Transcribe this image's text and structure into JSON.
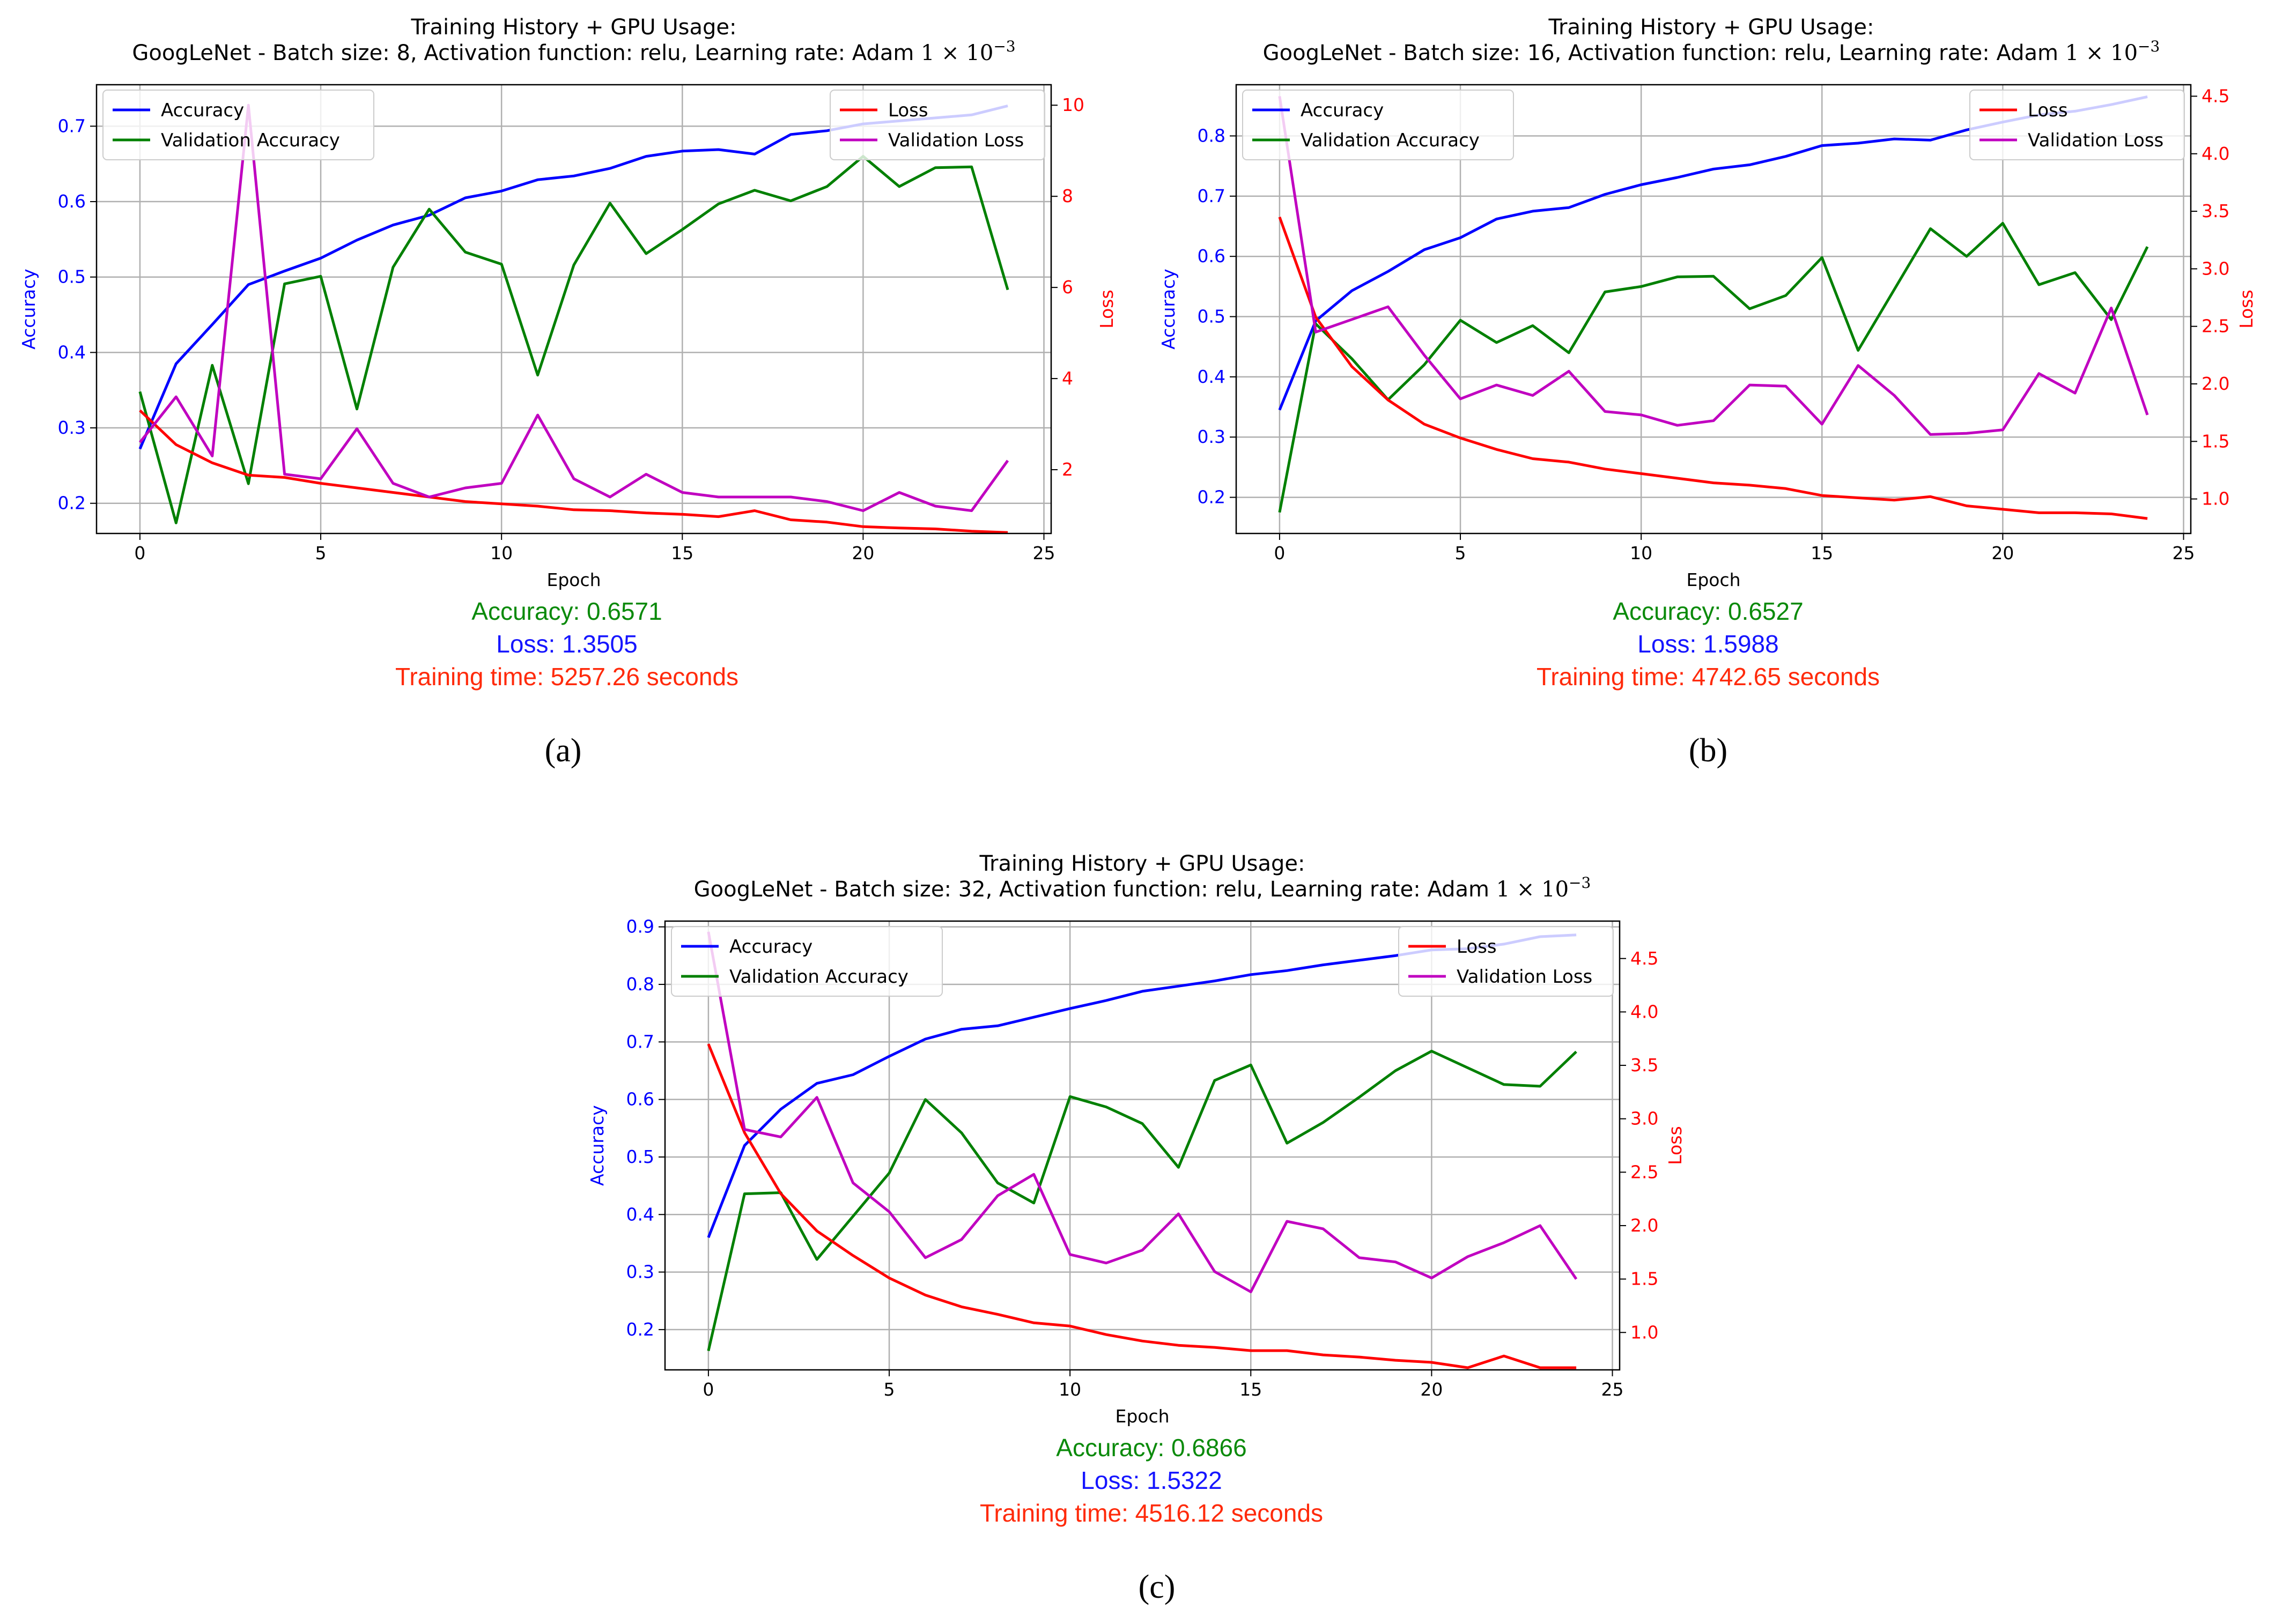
{
  "chart_data": [
    {
      "type": "line",
      "subfigure_label": "(a)",
      "title": "Training History + GPU Usage:",
      "subtitle": "GoogLeNet - Batch size: 8, Activation function: relu, Learning rate: Adam",
      "lr_text": "1 × 10",
      "lr_exp": "−3",
      "xlabel": "Epoch",
      "ylabel": "Accuracy",
      "y2label": "Loss",
      "xlim": [
        -1.2,
        25.2
      ],
      "ylim": [
        0.16,
        0.755
      ],
      "y2lim": [
        0.6,
        10.45
      ],
      "xticks": [
        0,
        5,
        10,
        15,
        20,
        25
      ],
      "yticks": [
        0.2,
        0.3,
        0.4,
        0.5,
        0.6,
        0.7
      ],
      "y2ticks": [
        2,
        4,
        6,
        8,
        10
      ],
      "y2tick_labels": [
        "2",
        "4",
        "6",
        "8",
        "10"
      ],
      "grid": true,
      "legend_left": "top-left",
      "legend_right": "top-right",
      "x": [
        0,
        1,
        2,
        3,
        4,
        5,
        6,
        7,
        8,
        9,
        10,
        11,
        12,
        13,
        14,
        15,
        16,
        17,
        18,
        19,
        20,
        21,
        22,
        23,
        24
      ],
      "series": [
        {
          "name": "Accuracy",
          "axis": "left",
          "color": "#0000ff",
          "values": [
            0.272,
            0.385,
            0.437,
            0.49,
            0.508,
            0.525,
            0.549,
            0.569,
            0.582,
            0.605,
            0.614,
            0.629,
            0.634,
            0.644,
            0.66,
            0.667,
            0.669,
            0.663,
            0.689,
            0.694,
            0.703,
            0.707,
            0.711,
            0.715,
            0.727
          ]
        },
        {
          "name": "Validation Accuracy",
          "axis": "left",
          "color": "#008000",
          "values": [
            0.348,
            0.174,
            0.383,
            0.226,
            0.491,
            0.501,
            0.325,
            0.513,
            0.59,
            0.533,
            0.517,
            0.37,
            0.516,
            0.598,
            0.531,
            0.563,
            0.597,
            0.615,
            0.601,
            0.62,
            0.66,
            0.62,
            0.645,
            0.646,
            0.483
          ]
        },
        {
          "name": "Loss",
          "axis": "right",
          "color": "#ff0000",
          "values": [
            3.3,
            2.55,
            2.15,
            1.88,
            1.83,
            1.7,
            1.6,
            1.5,
            1.4,
            1.3,
            1.25,
            1.2,
            1.12,
            1.1,
            1.05,
            1.02,
            0.97,
            1.1,
            0.9,
            0.85,
            0.75,
            0.72,
            0.7,
            0.65,
            0.62
          ]
        },
        {
          "name": "Validation Loss",
          "axis": "right",
          "color": "#c000c0",
          "values": [
            2.6,
            3.6,
            2.3,
            10.0,
            1.9,
            1.8,
            2.9,
            1.7,
            1.4,
            1.6,
            1.7,
            3.2,
            1.8,
            1.4,
            1.9,
            1.5,
            1.4,
            1.4,
            1.4,
            1.3,
            1.1,
            1.5,
            1.2,
            1.1,
            2.2
          ]
        }
      ],
      "stats": {
        "accuracy": "Accuracy: 0.6571",
        "loss": "Loss: 1.3505",
        "time": "Training time: 5257.26 seconds"
      }
    },
    {
      "type": "line",
      "subfigure_label": "(b)",
      "title": "Training History + GPU Usage:",
      "subtitle": "GoogLeNet - Batch size: 16, Activation function: relu, Learning rate: Adam",
      "lr_text": "1 × 10",
      "lr_exp": "−3",
      "xlabel": "Epoch",
      "ylabel": "Accuracy",
      "y2label": "Loss",
      "xlim": [
        -1.2,
        25.2
      ],
      "ylim": [
        0.14,
        0.885
      ],
      "y2lim": [
        0.7,
        4.6
      ],
      "xticks": [
        0,
        5,
        10,
        15,
        20,
        25
      ],
      "yticks": [
        0.2,
        0.3,
        0.4,
        0.5,
        0.6,
        0.7,
        0.8
      ],
      "y2ticks": [
        1.0,
        1.5,
        2.0,
        2.5,
        3.0,
        3.5,
        4.0,
        4.5
      ],
      "y2tick_labels": [
        "1.0",
        "1.5",
        "2.0",
        "2.5",
        "3.0",
        "3.5",
        "4.0",
        "4.5"
      ],
      "grid": true,
      "legend_left": "top-left",
      "legend_right": "top-right",
      "x": [
        0,
        1,
        2,
        3,
        4,
        5,
        6,
        7,
        8,
        9,
        10,
        11,
        12,
        13,
        14,
        15,
        16,
        17,
        18,
        19,
        20,
        21,
        22,
        23,
        24
      ],
      "series": [
        {
          "name": "Accuracy",
          "axis": "left",
          "color": "#0000ff",
          "values": [
            0.345,
            0.493,
            0.543,
            0.575,
            0.611,
            0.631,
            0.662,
            0.675,
            0.681,
            0.703,
            0.719,
            0.731,
            0.745,
            0.752,
            0.766,
            0.784,
            0.788,
            0.795,
            0.793,
            0.81,
            0.823,
            0.835,
            0.841,
            0.852,
            0.865
          ]
        },
        {
          "name": "Validation Accuracy",
          "axis": "left",
          "color": "#008000",
          "values": [
            0.175,
            0.488,
            0.43,
            0.362,
            0.42,
            0.494,
            0.457,
            0.485,
            0.44,
            0.541,
            0.55,
            0.566,
            0.567,
            0.513,
            0.535,
            0.598,
            0.444,
            0.545,
            0.646,
            0.6,
            0.655,
            0.553,
            0.573,
            0.495,
            0.616
          ]
        },
        {
          "name": "Loss",
          "axis": "right",
          "color": "#ff0000",
          "values": [
            3.45,
            2.58,
            2.15,
            1.86,
            1.65,
            1.53,
            1.43,
            1.35,
            1.32,
            1.26,
            1.22,
            1.18,
            1.14,
            1.12,
            1.09,
            1.03,
            1.01,
            0.99,
            1.02,
            0.94,
            0.91,
            0.88,
            0.88,
            0.87,
            0.83
          ]
        },
        {
          "name": "Validation Loss",
          "axis": "right",
          "color": "#c000c0",
          "values": [
            4.5,
            2.45,
            2.56,
            2.67,
            2.25,
            1.87,
            1.99,
            1.9,
            2.11,
            1.76,
            1.73,
            1.64,
            1.68,
            1.99,
            1.98,
            1.65,
            2.16,
            1.9,
            1.56,
            1.57,
            1.6,
            2.09,
            1.92,
            2.66,
            1.73
          ]
        }
      ],
      "stats": {
        "accuracy": "Accuracy: 0.6527",
        "loss": "Loss: 1.5988",
        "time": "Training time: 4742.65 seconds"
      }
    },
    {
      "type": "line",
      "subfigure_label": "(c)",
      "title": "Training History + GPU Usage:",
      "subtitle": "GoogLeNet - Batch size: 32, Activation function: relu, Learning rate: Adam",
      "lr_text": "1 × 10",
      "lr_exp": "−3",
      "xlabel": "Epoch",
      "ylabel": "Accuracy",
      "y2label": "Loss",
      "xlim": [
        -1.2,
        25.2
      ],
      "ylim": [
        0.13,
        0.91
      ],
      "y2lim": [
        0.65,
        4.85
      ],
      "xticks": [
        0,
        5,
        10,
        15,
        20,
        25
      ],
      "yticks": [
        0.2,
        0.3,
        0.4,
        0.5,
        0.6,
        0.7,
        0.8,
        0.9
      ],
      "y2ticks": [
        1.0,
        1.5,
        2.0,
        2.5,
        3.0,
        3.5,
        4.0,
        4.5
      ],
      "y2tick_labels": [
        "1.0",
        "1.5",
        "2.0",
        "2.5",
        "3.0",
        "3.5",
        "4.0",
        "4.5"
      ],
      "grid": true,
      "legend_left": "top-left",
      "legend_right": "top-right",
      "x": [
        0,
        1,
        2,
        3,
        4,
        5,
        6,
        7,
        8,
        9,
        10,
        11,
        12,
        13,
        14,
        15,
        16,
        17,
        18,
        19,
        20,
        21,
        22,
        23,
        24
      ],
      "series": [
        {
          "name": "Accuracy",
          "axis": "left",
          "color": "#0000ff",
          "values": [
            0.36,
            0.52,
            0.583,
            0.628,
            0.643,
            0.675,
            0.705,
            0.722,
            0.728,
            0.743,
            0.758,
            0.772,
            0.788,
            0.797,
            0.806,
            0.817,
            0.824,
            0.834,
            0.842,
            0.85,
            0.86,
            0.862,
            0.87,
            0.883,
            0.886
          ]
        },
        {
          "name": "Validation Accuracy",
          "axis": "left",
          "color": "#008000",
          "values": [
            0.163,
            0.436,
            0.438,
            0.322,
            0.397,
            0.472,
            0.6,
            0.542,
            0.455,
            0.42,
            0.605,
            0.587,
            0.558,
            0.482,
            0.633,
            0.66,
            0.524,
            0.56,
            0.604,
            0.65,
            0.684,
            0.655,
            0.626,
            0.623,
            0.683
          ]
        },
        {
          "name": "Loss",
          "axis": "right",
          "color": "#ff0000",
          "values": [
            3.7,
            2.87,
            2.3,
            1.95,
            1.72,
            1.51,
            1.35,
            1.24,
            1.17,
            1.09,
            1.06,
            0.98,
            0.92,
            0.88,
            0.86,
            0.83,
            0.83,
            0.79,
            0.77,
            0.74,
            0.72,
            0.67,
            0.78,
            0.67,
            0.67
          ]
        },
        {
          "name": "Validation Loss",
          "axis": "right",
          "color": "#c000c0",
          "values": [
            4.75,
            2.9,
            2.83,
            3.2,
            2.4,
            2.13,
            1.7,
            1.87,
            2.28,
            2.48,
            1.73,
            1.65,
            1.77,
            2.11,
            1.57,
            1.38,
            2.04,
            1.97,
            1.7,
            1.66,
            1.51,
            1.71,
            1.84,
            2.0,
            1.5
          ]
        }
      ],
      "stats": {
        "accuracy": "Accuracy: 0.6866",
        "loss": "Loss: 1.5322",
        "time": "Training time: 4516.12 seconds"
      }
    }
  ]
}
